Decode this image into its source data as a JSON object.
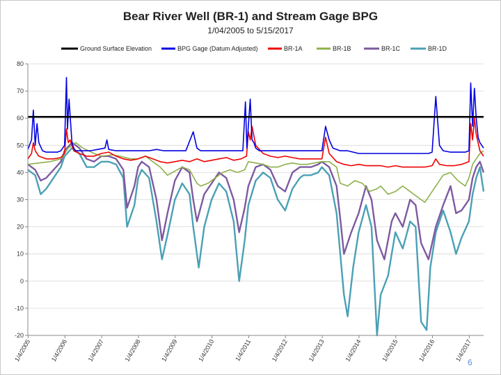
{
  "chart_data": {
    "type": "line",
    "title": "Bear River Well (BR-1) and Stream Gage BPG",
    "subtitle": "1/04/2005 to 5/15/2017",
    "xlabel": "",
    "ylabel": "",
    "ylim": [
      -20,
      80
    ],
    "xlim": [
      2005.0,
      2017.4
    ],
    "yticks": [
      "80",
      "70",
      "60",
      "50",
      "40",
      "30",
      "20",
      "10",
      "0",
      "-10",
      "-20"
    ],
    "xticks": [
      "1/4/2005",
      "1/4/2006",
      "1/4/2007",
      "1/4/2008",
      "1/4/2009",
      "1/4/2010",
      "1/4/2011",
      "1/4/2012",
      "1/4/2013",
      "1/4/2014",
      "1/4/2015",
      "1/4/2016",
      "1/4/2017"
    ],
    "grid": true,
    "legend_position": "top",
    "series": [
      {
        "name": "Ground Surface Elevation",
        "color": "#000000",
        "x": [
          2005.0,
          2017.4
        ],
        "y": [
          60.5,
          60.5
        ]
      },
      {
        "name": "BPG Gage (Datum Adjusted)",
        "color": "#0000e0",
        "x": [
          2005.0,
          2005.1,
          2005.15,
          2005.2,
          2005.25,
          2005.3,
          2005.4,
          2005.5,
          2005.6,
          2005.7,
          2005.8,
          2005.9,
          2006.0,
          2006.05,
          2006.08,
          2006.12,
          2006.2,
          2006.25,
          2006.3,
          2006.4,
          2006.5,
          2006.7,
          2006.9,
          2007.1,
          2007.15,
          2007.2,
          2007.4,
          2007.6,
          2007.8,
          2008.0,
          2008.3,
          2008.5,
          2008.7,
          2009.0,
          2009.3,
          2009.5,
          2009.6,
          2009.7,
          2009.9,
          2010.0,
          2010.3,
          2010.5,
          2010.7,
          2010.85,
          2010.92,
          2010.96,
          2011.0,
          2011.05,
          2011.1,
          2011.15,
          2011.2,
          2011.3,
          2011.5,
          2011.7,
          2011.9,
          2012.0,
          2012.1,
          2012.2,
          2012.3,
          2012.5,
          2012.7,
          2012.9,
          2013.0,
          2013.1,
          2013.2,
          2013.3,
          2013.5,
          2013.7,
          2014.0,
          2014.3,
          2014.5,
          2014.7,
          2015.0,
          2015.3,
          2015.5,
          2015.7,
          2015.9,
          2016.0,
          2016.1,
          2016.2,
          2016.3,
          2016.5,
          2016.7,
          2016.9,
          2017.0,
          2017.05,
          2017.1,
          2017.15,
          2017.2,
          2017.25,
          2017.3,
          2017.4
        ],
        "y": [
          48.5,
          52,
          63,
          50,
          58,
          51,
          48,
          47.5,
          47.5,
          47.5,
          47.5,
          48,
          50,
          75,
          56,
          67,
          51,
          49,
          48,
          48,
          48,
          48,
          48.5,
          49,
          52,
          48.5,
          48,
          48,
          48,
          48,
          48,
          48.5,
          48,
          48,
          48,
          55,
          49,
          48,
          48,
          48,
          48,
          48,
          48,
          48,
          66,
          49,
          57,
          67,
          52,
          51,
          49,
          48,
          48,
          48,
          48,
          48,
          48,
          48,
          48,
          48,
          48,
          48,
          48,
          57,
          52,
          49,
          48,
          48,
          47,
          47,
          47,
          47,
          47,
          47,
          47,
          47,
          47,
          47.5,
          68,
          50,
          48,
          47.5,
          47.5,
          47.5,
          48,
          73,
          57,
          71,
          60,
          53,
          51,
          49
        ]
      },
      {
        "name": "BR-1A",
        "color": "#ee0000",
        "x": [
          2005.0,
          2005.1,
          2005.15,
          2005.2,
          2005.3,
          2005.5,
          2005.7,
          2005.9,
          2006.0,
          2006.05,
          2006.1,
          2006.15,
          2006.25,
          2006.4,
          2006.6,
          2006.8,
          2007.0,
          2007.2,
          2007.4,
          2007.6,
          2007.8,
          2008.0,
          2008.2,
          2008.4,
          2008.6,
          2008.8,
          2009.0,
          2009.2,
          2009.4,
          2009.6,
          2009.8,
          2010.0,
          2010.2,
          2010.4,
          2010.6,
          2010.8,
          2010.95,
          2011.0,
          2011.05,
          2011.1,
          2011.2,
          2011.4,
          2011.6,
          2011.8,
          2012.0,
          2012.2,
          2012.4,
          2012.6,
          2012.8,
          2013.0,
          2013.1,
          2013.2,
          2013.4,
          2013.6,
          2013.8,
          2014.0,
          2014.2,
          2014.4,
          2014.6,
          2014.8,
          2015.0,
          2015.2,
          2015.4,
          2015.6,
          2015.8,
          2016.0,
          2016.1,
          2016.2,
          2016.4,
          2016.6,
          2016.8,
          2017.0,
          2017.05,
          2017.1,
          2017.15,
          2017.2,
          2017.3,
          2017.4
        ],
        "y": [
          45,
          47,
          51,
          48,
          46,
          45,
          45,
          45.5,
          47,
          56,
          51,
          52,
          48,
          47,
          46,
          46,
          47,
          47.5,
          46,
          45,
          44.5,
          45,
          46,
          45,
          44,
          43.5,
          44,
          44.5,
          44,
          45,
          44,
          44.5,
          45,
          45.5,
          44.5,
          45,
          46,
          55,
          52,
          57,
          50,
          47,
          46,
          45.5,
          46,
          45.5,
          45,
          45,
          45,
          45,
          53,
          47,
          44,
          43,
          42.5,
          43,
          42.5,
          42.5,
          42.5,
          42,
          42.5,
          42,
          42,
          42,
          42,
          42.5,
          45,
          43,
          42.5,
          42.5,
          43,
          44,
          58,
          52,
          60,
          54,
          48,
          46
        ]
      },
      {
        "name": "BR-1B",
        "color": "#8db04a",
        "x": [
          2005.0,
          2005.3,
          2005.6,
          2005.9,
          2006.1,
          2006.3,
          2006.5,
          2006.8,
          2007.0,
          2007.3,
          2007.5,
          2007.8,
          2008.0,
          2008.2,
          2008.4,
          2008.6,
          2008.8,
          2009.0,
          2009.2,
          2009.4,
          2009.6,
          2009.7,
          2009.9,
          2010.1,
          2010.3,
          2010.5,
          2010.7,
          2010.9,
          2011.0,
          2011.2,
          2011.4,
          2011.6,
          2011.8,
          2012.0,
          2012.2,
          2012.4,
          2012.6,
          2012.8,
          2013.0,
          2013.2,
          2013.4,
          2013.5,
          2013.7,
          2013.9,
          2014.1,
          2014.3,
          2014.5,
          2014.6,
          2014.8,
          2015.0,
          2015.2,
          2015.4,
          2015.6,
          2015.8,
          2016.0,
          2016.1,
          2016.3,
          2016.5,
          2016.7,
          2016.9,
          2017.0,
          2017.1,
          2017.2,
          2017.3,
          2017.4
        ],
        "y": [
          43,
          43.5,
          44,
          45,
          49,
          51,
          49,
          47,
          46,
          46.5,
          46,
          45,
          45,
          46,
          44,
          42,
          39,
          40.5,
          42,
          41,
          36,
          35,
          36,
          38,
          40,
          41,
          40,
          41,
          44,
          43.5,
          43,
          42,
          42,
          43,
          43.5,
          43,
          43,
          43.5,
          44,
          44,
          42,
          36,
          35,
          37,
          36,
          33,
          34,
          35,
          32,
          33,
          35,
          33,
          31,
          29,
          33,
          35,
          39,
          40,
          37,
          35,
          38,
          43,
          45,
          47,
          48
        ]
      },
      {
        "name": "BR-1C",
        "color": "#7d5aa0",
        "x": [
          2005.0,
          2005.2,
          2005.35,
          2005.5,
          2005.7,
          2005.9,
          2006.0,
          2006.2,
          2006.4,
          2006.6,
          2006.8,
          2007.0,
          2007.2,
          2007.4,
          2007.6,
          2007.7,
          2007.9,
          2008.0,
          2008.1,
          2008.3,
          2008.5,
          2008.65,
          2008.8,
          2009.0,
          2009.2,
          2009.4,
          2009.5,
          2009.6,
          2009.8,
          2010.0,
          2010.2,
          2010.4,
          2010.6,
          2010.75,
          2010.9,
          2011.0,
          2011.2,
          2011.4,
          2011.6,
          2011.8,
          2012.0,
          2012.2,
          2012.4,
          2012.5,
          2012.7,
          2012.9,
          2013.0,
          2013.2,
          2013.4,
          2013.5,
          2013.6,
          2013.8,
          2014.0,
          2014.2,
          2014.35,
          2014.5,
          2014.7,
          2014.9,
          2015.0,
          2015.2,
          2015.4,
          2015.55,
          2015.7,
          2015.9,
          2016.1,
          2016.3,
          2016.5,
          2016.65,
          2016.8,
          2017.0,
          2017.1,
          2017.2,
          2017.3,
          2017.4
        ],
        "y": [
          43,
          41,
          37,
          38,
          41,
          44,
          48,
          51,
          49,
          45,
          44,
          46,
          46,
          45,
          41,
          27,
          35,
          42,
          44,
          42,
          30,
          15,
          25,
          37,
          42,
          40,
          30,
          22,
          32,
          36,
          40,
          38,
          30,
          18,
          27,
          35,
          42,
          43,
          41,
          35,
          33,
          40,
          42,
          42,
          42,
          43,
          44,
          42,
          35,
          23,
          10,
          18,
          25,
          35,
          30,
          15,
          8,
          22,
          25,
          20,
          30,
          28,
          14,
          8,
          20,
          28,
          35,
          25,
          26,
          30,
          38,
          42,
          44,
          40
        ]
      },
      {
        "name": "BR-1D",
        "color": "#4aa0b5",
        "x": [
          2005.0,
          2005.2,
          2005.35,
          2005.5,
          2005.7,
          2005.9,
          2006.0,
          2006.2,
          2006.4,
          2006.6,
          2006.8,
          2007.0,
          2007.2,
          2007.4,
          2007.6,
          2007.7,
          2007.9,
          2008.0,
          2008.1,
          2008.3,
          2008.5,
          2008.65,
          2008.8,
          2009.0,
          2009.2,
          2009.4,
          2009.5,
          2009.65,
          2009.8,
          2010.0,
          2010.2,
          2010.4,
          2010.6,
          2010.75,
          2010.9,
          2011.0,
          2011.2,
          2011.4,
          2011.6,
          2011.8,
          2012.0,
          2012.2,
          2012.4,
          2012.5,
          2012.7,
          2012.9,
          2013.0,
          2013.2,
          2013.4,
          2013.5,
          2013.6,
          2013.7,
          2013.85,
          2014.0,
          2014.2,
          2014.35,
          2014.5,
          2014.6,
          2014.8,
          2014.9,
          2015.0,
          2015.2,
          2015.4,
          2015.55,
          2015.7,
          2015.85,
          2015.95,
          2016.1,
          2016.3,
          2016.5,
          2016.65,
          2016.8,
          2017.0,
          2017.1,
          2017.2,
          2017.3,
          2017.4
        ],
        "y": [
          41,
          39,
          32,
          34,
          38,
          42,
          46,
          49,
          47,
          42,
          42,
          44,
          44,
          43,
          38,
          20,
          28,
          38,
          41,
          38,
          22,
          8,
          17,
          30,
          36,
          32,
          20,
          5,
          20,
          30,
          36,
          33,
          22,
          0,
          15,
          28,
          37,
          40,
          38,
          30,
          26,
          34,
          38,
          39,
          39,
          40,
          42,
          39,
          25,
          10,
          -5,
          -13,
          5,
          18,
          28,
          20,
          -20,
          -5,
          2,
          10,
          18,
          12,
          22,
          20,
          -15,
          -18,
          5,
          18,
          26,
          18,
          10,
          16,
          22,
          32,
          38,
          42,
          33
        ]
      }
    ]
  },
  "footer": {
    "page_number": "6"
  }
}
